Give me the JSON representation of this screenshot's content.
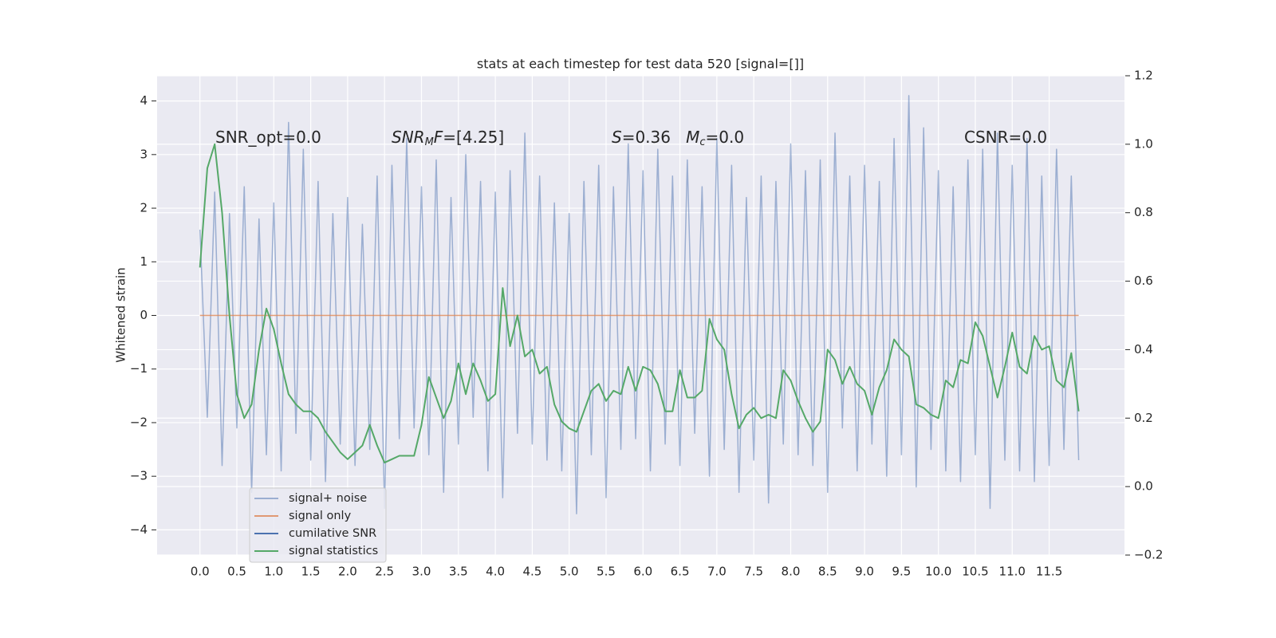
{
  "chart_data": {
    "type": "line",
    "title": "stats at each timestep for test data 520 [signal=[]]",
    "ylabel": "Whitened strain",
    "xlim": [
      -0.58,
      12.52
    ],
    "ylim": [
      -4.47,
      4.47
    ],
    "y2lim": [
      -0.2,
      1.2
    ],
    "xticks": [
      {
        "value": 0,
        "label": "0.0"
      },
      0.5,
      {
        "value": 1,
        "label": "1.0"
      },
      1.5,
      {
        "value": 2,
        "label": "2.0"
      },
      2.5,
      {
        "value": 3,
        "label": "3.0"
      },
      3.5,
      {
        "value": 4,
        "label": "4.0"
      },
      4.5,
      {
        "value": 5,
        "label": "5.0"
      },
      5.5,
      {
        "value": 6,
        "label": "6.0"
      },
      6.5,
      {
        "value": 7,
        "label": "7.0"
      },
      7.5,
      {
        "value": 8,
        "label": "8.0"
      },
      8.5,
      {
        "value": 9,
        "label": "9.0"
      },
      9.5,
      {
        "value": 10,
        "label": "10.0"
      },
      10.5,
      {
        "value": 11,
        "label": "11.0"
      },
      11.5
    ],
    "yticks": [
      {
        "value": -4,
        "label": "−4"
      },
      {
        "value": -3,
        "label": "−3"
      },
      {
        "value": -2,
        "label": "−2"
      },
      {
        "value": -1,
        "label": "−1"
      },
      0,
      1,
      2,
      3,
      4
    ],
    "y2ticks": [
      {
        "value": -0.2,
        "label": "−0.2"
      },
      {
        "value": 0,
        "label": "0.0"
      },
      0.2,
      0.4,
      0.6,
      0.8,
      {
        "value": 1,
        "label": "1.0"
      },
      1.2
    ],
    "grid": true,
    "legend": "lower left",
    "annotations": [
      [
        {
          "t": "SNR_opt=0.0"
        }
      ],
      [
        {
          "t": "SNR",
          "italic": true
        },
        {
          "t": "M",
          "italic": true,
          "sub": true
        },
        {
          "t": "F",
          "italic": true
        },
        {
          "t": "=[4.25]"
        }
      ],
      [
        {
          "t": "S",
          "italic": true
        },
        {
          "t": "=0.36   "
        },
        {
          "t": "M",
          "italic": true
        },
        {
          "t": "c",
          "italic": true,
          "sub": true
        },
        {
          "t": "=0.0"
        }
      ],
      [
        {
          "t": "CSNR=0.0"
        }
      ]
    ],
    "x": [
      0.0,
      0.1,
      0.2,
      0.3,
      0.4,
      0.5,
      0.6,
      0.7,
      0.8,
      0.9,
      1.0,
      1.1,
      1.2,
      1.3,
      1.4,
      1.5,
      1.6,
      1.7,
      1.8,
      1.9,
      2.0,
      2.1,
      2.2,
      2.3,
      2.4,
      2.5,
      2.6,
      2.7,
      2.8,
      2.9,
      3.0,
      3.1,
      3.2,
      3.3,
      3.4,
      3.5,
      3.6,
      3.7,
      3.8,
      3.9,
      4.0,
      4.1,
      4.2,
      4.3,
      4.4,
      4.5,
      4.6,
      4.7,
      4.8,
      4.9,
      5.0,
      5.1,
      5.2,
      5.3,
      5.4,
      5.5,
      5.6,
      5.7,
      5.8,
      5.9,
      6.0,
      6.1,
      6.2,
      6.3,
      6.4,
      6.5,
      6.6,
      6.7,
      6.8,
      6.9,
      7.0,
      7.1,
      7.2,
      7.3,
      7.4,
      7.5,
      7.6,
      7.7,
      7.8,
      7.9,
      8.0,
      8.1,
      8.2,
      8.3,
      8.4,
      8.5,
      8.6,
      8.7,
      8.8,
      8.9,
      9.0,
      9.1,
      9.2,
      9.3,
      9.4,
      9.5,
      9.6,
      9.7,
      9.8,
      9.9,
      10.0,
      10.1,
      10.2,
      10.3,
      10.4,
      10.5,
      10.6,
      10.7,
      10.8,
      10.9,
      11.0,
      11.1,
      11.2,
      11.3,
      11.4,
      11.5,
      11.6,
      11.7,
      11.8,
      11.9
    ],
    "series": [
      {
        "name": "signal+ noise",
        "color": "#4c72b0",
        "opacity": 0.5,
        "values": [
          1.6,
          -1.9,
          2.3,
          -2.8,
          1.9,
          -2.1,
          2.4,
          -3.3,
          1.8,
          -2.6,
          2.1,
          -2.9,
          3.6,
          -2.2,
          3.1,
          -2.7,
          2.5,
          -3.1,
          1.9,
          -2.4,
          2.2,
          -2.8,
          1.7,
          -2.5,
          2.6,
          -3.6,
          2.8,
          -2.3,
          3.3,
          -2.1,
          2.4,
          -2.6,
          2.9,
          -3.3,
          2.2,
          -2.4,
          3.0,
          -1.9,
          2.5,
          -2.9,
          2.3,
          -3.4,
          2.7,
          -2.2,
          3.4,
          -2.4,
          2.6,
          -2.7,
          2.1,
          -2.9,
          1.9,
          -3.7,
          2.5,
          -2.6,
          2.8,
          -3.4,
          2.4,
          -2.5,
          3.2,
          -2.3,
          2.7,
          -2.9,
          3.1,
          -2.4,
          2.6,
          -2.8,
          2.9,
          -2.2,
          2.4,
          -3.0,
          3.3,
          -2.5,
          2.8,
          -3.3,
          2.2,
          -2.7,
          2.6,
          -3.5,
          2.5,
          -2.4,
          3.2,
          -2.6,
          2.7,
          -2.8,
          2.9,
          -3.3,
          3.4,
          -2.1,
          2.6,
          -2.9,
          2.8,
          -2.4,
          2.5,
          -3.0,
          3.3,
          -2.6,
          4.1,
          -3.2,
          3.5,
          -2.5,
          2.7,
          -2.9,
          2.4,
          -3.1,
          2.9,
          -2.6,
          3.1,
          -3.6,
          3.4,
          -2.7,
          2.8,
          -2.9,
          3.3,
          -3.1,
          2.6,
          -2.8,
          3.1,
          -2.5,
          2.6,
          -2.7
        ]
      },
      {
        "name": "signal only",
        "color": "#dd8452",
        "opacity": 0.8,
        "values": [
          0,
          0,
          0,
          0,
          0,
          0,
          0,
          0,
          0,
          0,
          0,
          0,
          0,
          0,
          0,
          0,
          0,
          0,
          0,
          0,
          0,
          0,
          0,
          0,
          0,
          0,
          0,
          0,
          0,
          0,
          0,
          0,
          0,
          0,
          0,
          0,
          0,
          0,
          0,
          0,
          0,
          0,
          0,
          0,
          0,
          0,
          0,
          0,
          0,
          0,
          0,
          0,
          0,
          0,
          0,
          0,
          0,
          0,
          0,
          0,
          0,
          0,
          0,
          0,
          0,
          0,
          0,
          0,
          0,
          0,
          0,
          0,
          0,
          0,
          0,
          0,
          0,
          0,
          0,
          0,
          0,
          0,
          0,
          0,
          0,
          0,
          0,
          0,
          0,
          0,
          0,
          0,
          0,
          0,
          0,
          0,
          0,
          0,
          0,
          0,
          0,
          0,
          0,
          0,
          0,
          0,
          0,
          0,
          0,
          0,
          0,
          0,
          0,
          0,
          0,
          0,
          0,
          0,
          0,
          0
        ]
      },
      {
        "name": "cumilative SNR",
        "color": "#4c72b0",
        "opacity": 1
      },
      {
        "name": "signal statistics",
        "color": "#55a868",
        "opacity": 1,
        "axis": "y2",
        "values": [
          0.64,
          0.93,
          1.0,
          0.8,
          0.5,
          0.27,
          0.2,
          0.24,
          0.4,
          0.52,
          0.46,
          0.36,
          0.27,
          0.24,
          0.22,
          0.22,
          0.2,
          0.16,
          0.13,
          0.1,
          0.08,
          0.1,
          0.12,
          0.18,
          0.12,
          0.07,
          0.08,
          0.09,
          0.09,
          0.09,
          0.18,
          0.32,
          0.26,
          0.2,
          0.25,
          0.36,
          0.27,
          0.36,
          0.31,
          0.25,
          0.27,
          0.58,
          0.41,
          0.5,
          0.38,
          0.4,
          0.33,
          0.35,
          0.24,
          0.19,
          0.17,
          0.16,
          0.22,
          0.28,
          0.3,
          0.25,
          0.28,
          0.27,
          0.35,
          0.28,
          0.35,
          0.34,
          0.3,
          0.22,
          0.22,
          0.34,
          0.26,
          0.26,
          0.28,
          0.49,
          0.43,
          0.4,
          0.27,
          0.17,
          0.21,
          0.23,
          0.2,
          0.21,
          0.2,
          0.34,
          0.31,
          0.25,
          0.2,
          0.16,
          0.19,
          0.4,
          0.37,
          0.3,
          0.35,
          0.3,
          0.28,
          0.21,
          0.29,
          0.34,
          0.43,
          0.4,
          0.38,
          0.24,
          0.23,
          0.21,
          0.2,
          0.31,
          0.29,
          0.37,
          0.36,
          0.48,
          0.44,
          0.35,
          0.26,
          0.35,
          0.45,
          0.35,
          0.33,
          0.44,
          0.4,
          0.41,
          0.31,
          0.29,
          0.39,
          0.22
        ]
      }
    ]
  }
}
